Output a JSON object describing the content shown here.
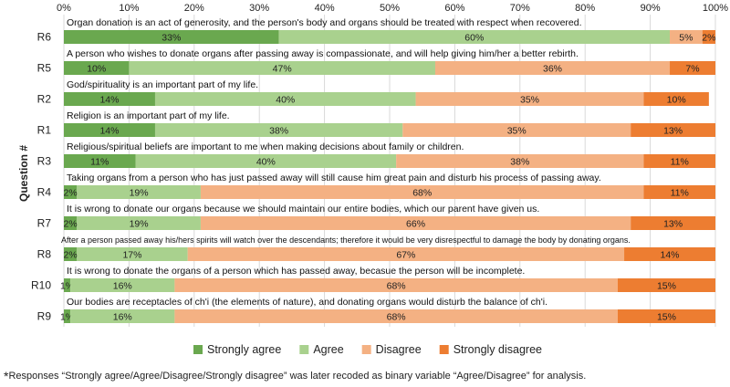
{
  "chart_data": {
    "type": "bar",
    "orientation": "horizontal",
    "stacked": true,
    "percent": true,
    "ylabel": "Question #",
    "xlim": [
      0,
      100
    ],
    "x_ticks": [
      "0%",
      "10%",
      "20%",
      "30%",
      "40%",
      "50%",
      "60%",
      "70%",
      "80%",
      "90%",
      "100%"
    ],
    "x_tick_position": "top",
    "grid": true,
    "legend_position": "bottom",
    "colors": [
      "#6aa84f",
      "#a9d18e",
      "#f4b183",
      "#ed7d31"
    ],
    "series": [
      {
        "name": "Strongly agree"
      },
      {
        "name": "Agree"
      },
      {
        "name": "Disagree"
      },
      {
        "name": "Strongly disagree"
      }
    ],
    "rows": [
      {
        "label": "R6",
        "question": "Organ donation is an act of generosity, and the person's body and organs should be treated with respect when recovered.",
        "values": [
          33,
          60,
          5,
          2
        ],
        "value_labels": [
          "33%",
          "60%",
          "5%",
          "2%"
        ]
      },
      {
        "label": "R5",
        "question": "A person who wishes to donate organs after passing away is compassionate, and will help giving him/her a better rebirth.",
        "values": [
          10,
          47,
          36,
          7
        ],
        "value_labels": [
          "10%",
          "47%",
          "36%",
          "7%"
        ]
      },
      {
        "label": "R2",
        "question": "God/spirituality is an important part of my life.",
        "values": [
          14,
          40,
          35,
          10
        ],
        "value_labels": [
          "14%",
          "40%",
          "35%",
          "10%"
        ]
      },
      {
        "label": "R1",
        "question": "Religion is an important part of my life.",
        "values": [
          14,
          38,
          35,
          13
        ],
        "value_labels": [
          "14%",
          "38%",
          "35%",
          "13%"
        ]
      },
      {
        "label": "R3",
        "question": "Religious/spiritual beliefs are important to me when making decisions about family or children.",
        "values": [
          11,
          40,
          38,
          11
        ],
        "value_labels": [
          "11%",
          "40%",
          "38%",
          "11%"
        ]
      },
      {
        "label": "R4",
        "question": "Taking organs from a person who has just passed away will still cause him great pain and disturb his process of passing away.",
        "values": [
          2,
          19,
          68,
          11
        ],
        "value_labels": [
          "2%",
          "19%",
          "68%",
          "11%"
        ]
      },
      {
        "label": "R7",
        "question": "It is wrong to donate our organs because we should maintain our entire bodies, which our parent have given us.",
        "values": [
          2,
          19,
          66,
          13
        ],
        "value_labels": [
          "2%",
          "19%",
          "66%",
          "13%"
        ]
      },
      {
        "label": "R8",
        "question": "After a person passed away his/hers spirits will watch over the descendants; therefore it would be very disrespectful to damage the body by donating organs.",
        "values": [
          2,
          17,
          67,
          14
        ],
        "value_labels": [
          "2%",
          "17%",
          "67%",
          "14%"
        ]
      },
      {
        "label": "R10",
        "question": "It is wrong to donate the organs of a person which has passed away, becasue the person will be incomplete.",
        "values": [
          1,
          16,
          68,
          15
        ],
        "value_labels": [
          "1%",
          "16%",
          "68%",
          "15%"
        ]
      },
      {
        "label": "R9",
        "question": "Our bodies are receptacles of ch'i (the elements of nature), and donating organs would disturb the balance of ch'i.",
        "values": [
          1,
          16,
          68,
          15
        ],
        "value_labels": [
          "1%",
          "16%",
          "68%",
          "15%"
        ]
      }
    ]
  },
  "footnote": {
    "star": "*",
    "text": "Responses “Strongly agree/Agree/Disagree/Strongly disagree” was later recoded as binary variable “Agree/Disagree” for analysis."
  }
}
